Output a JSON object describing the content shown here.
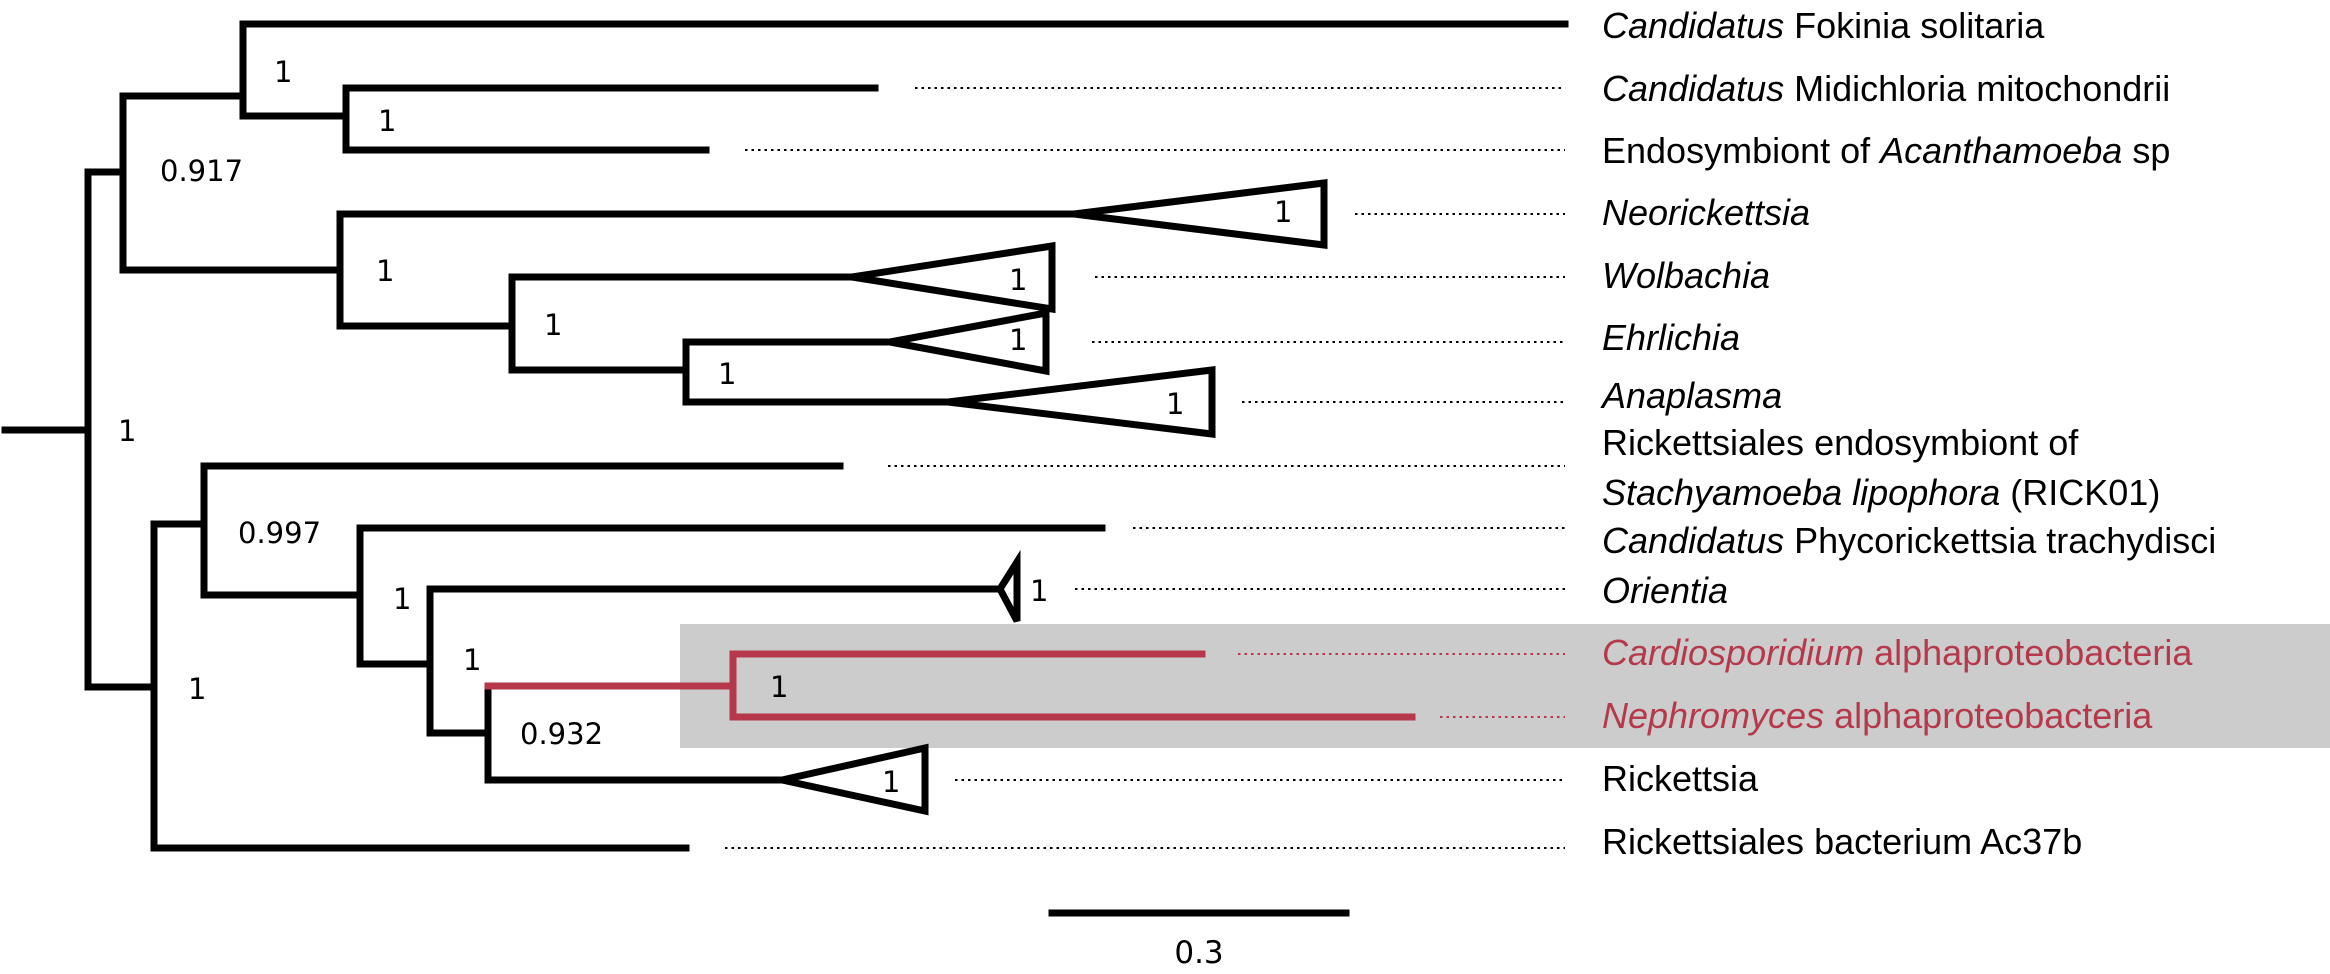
{
  "taxa": {
    "fokinia": {
      "italic": "Candidatus",
      "rest": " Fokinia solitaria"
    },
    "midichloria": {
      "italic": "Candidatus",
      "rest": " Midichloria mitochondrii"
    },
    "acanth": {
      "pre": "Endosymbiont of ",
      "italic": "Acanthamoeba",
      "post": " sp"
    },
    "neorickettsia": {
      "italic": "Neorickettsia"
    },
    "wolbachia": {
      "italic": "Wolbachia"
    },
    "ehrlichia": {
      "italic": "Ehrlichia"
    },
    "anaplasma": {
      "italic": "Anaplasma"
    },
    "stachy": {
      "line1": "Rickettsiales endosymbiont of",
      "italic": "Stachyamoeba lipophora",
      "post": " (RICK01)"
    },
    "phyco": {
      "italic": "Candidatus",
      "rest": " Phycorickettsia trachydisci"
    },
    "orientia": {
      "italic": "Orientia"
    },
    "cardio": {
      "italic": "Cardiosporidium",
      "rest": " alphaproteobacteria"
    },
    "nephro": {
      "italic": "Nephromyces",
      "rest": " alphaproteobacteria"
    },
    "rickettsia": {
      "plain": "Rickettsia"
    },
    "ac37b": {
      "plain": "Rickettsiales bacterium Ac37b"
    }
  },
  "supports": {
    "fokinia_clade": "1",
    "midi_clade": "1",
    "upper_clade": "0.917",
    "root_split": "1",
    "anaplasma_group": "1",
    "wolb_group": "1",
    "ehr_ana": "1",
    "tri_neorickettsia": "1",
    "tri_wolbachia": "1",
    "tri_ehrlichia": "1",
    "tri_anaplasma": "1",
    "lower_clade": "1",
    "stachy_clade": "0.997",
    "phyco_clade": "1",
    "orientia_clade": "1",
    "tri_orientia": "1",
    "cardio_nephro": "1",
    "rick_clade": "0.932",
    "tri_rickettsia": "1"
  },
  "scale_bar": {
    "value": 0.3,
    "label": "0.3"
  },
  "colors": {
    "highlight": "#b5394a",
    "highlight_box": "#cccccc",
    "branch": "#000000"
  }
}
